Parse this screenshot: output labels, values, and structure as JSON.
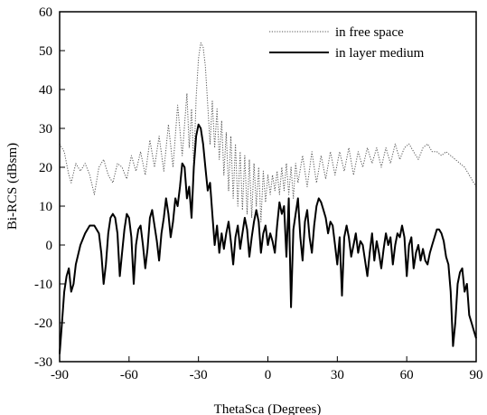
{
  "chart_data": {
    "type": "line",
    "xlabel": "ThetaSca (Degrees)",
    "ylabel": "Bi-RCS (dBsm)",
    "xlim": [
      -90,
      90
    ],
    "ylim": [
      -30,
      60
    ],
    "xticks": [
      -90,
      -60,
      -30,
      0,
      30,
      60,
      90
    ],
    "yticks": [
      -30,
      -20,
      -10,
      0,
      10,
      20,
      30,
      40,
      50,
      60
    ],
    "grid": false,
    "legend_position": "top-right",
    "series": [
      {
        "name": "in free space",
        "style": "dotted",
        "color": "#555555",
        "points": [
          [
            -90,
            26
          ],
          [
            -88,
            24
          ],
          [
            -86,
            18
          ],
          [
            -85,
            16
          ],
          [
            -83,
            21
          ],
          [
            -81,
            19
          ],
          [
            -79,
            21
          ],
          [
            -77,
            18
          ],
          [
            -75,
            13
          ],
          [
            -73,
            20
          ],
          [
            -71,
            22
          ],
          [
            -69,
            18
          ],
          [
            -67,
            16
          ],
          [
            -65,
            21
          ],
          [
            -63,
            20
          ],
          [
            -61,
            17
          ],
          [
            -59,
            23
          ],
          [
            -57,
            19
          ],
          [
            -55,
            24
          ],
          [
            -53,
            18
          ],
          [
            -51,
            27
          ],
          [
            -49,
            20
          ],
          [
            -47,
            28
          ],
          [
            -45,
            19
          ],
          [
            -43,
            31
          ],
          [
            -41,
            20
          ],
          [
            -39,
            36
          ],
          [
            -37,
            23
          ],
          [
            -35,
            39
          ],
          [
            -34,
            25
          ],
          [
            -33,
            35
          ],
          [
            -32,
            20
          ],
          [
            -31,
            38
          ],
          [
            -30,
            48
          ],
          [
            -29,
            52
          ],
          [
            -28,
            51
          ],
          [
            -27,
            46
          ],
          [
            -26,
            36
          ],
          [
            -25,
            26
          ],
          [
            -24,
            37
          ],
          [
            -23,
            25
          ],
          [
            -22,
            35
          ],
          [
            -21,
            22
          ],
          [
            -20,
            32
          ],
          [
            -19,
            18
          ],
          [
            -18,
            29
          ],
          [
            -17,
            14
          ],
          [
            -16,
            28
          ],
          [
            -15,
            12
          ],
          [
            -14,
            26
          ],
          [
            -13,
            10
          ],
          [
            -12,
            24
          ],
          [
            -11,
            9
          ],
          [
            -10,
            23
          ],
          [
            -9,
            8
          ],
          [
            -8,
            22
          ],
          [
            -7,
            7
          ],
          [
            -6,
            21
          ],
          [
            -5,
            10
          ],
          [
            -4,
            20
          ],
          [
            -3,
            6
          ],
          [
            -2,
            19
          ],
          [
            -1,
            11
          ],
          [
            0,
            18
          ],
          [
            1,
            13
          ],
          [
            2,
            18
          ],
          [
            3,
            14
          ],
          [
            4,
            19
          ],
          [
            5,
            13
          ],
          [
            6,
            20
          ],
          [
            7,
            14
          ],
          [
            8,
            21
          ],
          [
            9,
            13
          ],
          [
            10,
            20
          ],
          [
            11,
            12
          ],
          [
            12,
            21
          ],
          [
            13,
            16
          ],
          [
            15,
            23
          ],
          [
            17,
            15
          ],
          [
            19,
            24
          ],
          [
            21,
            16
          ],
          [
            23,
            23
          ],
          [
            25,
            17
          ],
          [
            27,
            24
          ],
          [
            29,
            18
          ],
          [
            31,
            24
          ],
          [
            33,
            19
          ],
          [
            35,
            25
          ],
          [
            37,
            18
          ],
          [
            39,
            24
          ],
          [
            41,
            20
          ],
          [
            43,
            25
          ],
          [
            45,
            21
          ],
          [
            47,
            25
          ],
          [
            49,
            20
          ],
          [
            51,
            25
          ],
          [
            53,
            21
          ],
          [
            55,
            26
          ],
          [
            57,
            22
          ],
          [
            59,
            25
          ],
          [
            61,
            26
          ],
          [
            63,
            24
          ],
          [
            65,
            22
          ],
          [
            67,
            25
          ],
          [
            69,
            26
          ],
          [
            71,
            24
          ],
          [
            73,
            24
          ],
          [
            75,
            23
          ],
          [
            77,
            24
          ],
          [
            79,
            23
          ],
          [
            81,
            22
          ],
          [
            83,
            21
          ],
          [
            85,
            20
          ],
          [
            87,
            18
          ],
          [
            89,
            16
          ],
          [
            90,
            15
          ]
        ]
      },
      {
        "name": "in layer medium",
        "style": "solid",
        "color": "#000000",
        "points": [
          [
            -90,
            -28
          ],
          [
            -89,
            -20
          ],
          [
            -88,
            -12
          ],
          [
            -87,
            -8
          ],
          [
            -86,
            -6
          ],
          [
            -85,
            -12
          ],
          [
            -84,
            -10
          ],
          [
            -83,
            -5
          ],
          [
            -81,
            0
          ],
          [
            -79,
            3
          ],
          [
            -77,
            5
          ],
          [
            -75,
            5
          ],
          [
            -73,
            3
          ],
          [
            -72,
            -2
          ],
          [
            -71,
            -10
          ],
          [
            -70,
            -5
          ],
          [
            -69,
            3
          ],
          [
            -68,
            7
          ],
          [
            -67,
            8
          ],
          [
            -66,
            7
          ],
          [
            -65,
            3
          ],
          [
            -64,
            -8
          ],
          [
            -63,
            -2
          ],
          [
            -62,
            4
          ],
          [
            -61,
            8
          ],
          [
            -60,
            7
          ],
          [
            -59,
            2
          ],
          [
            -58,
            -10
          ],
          [
            -57,
            0
          ],
          [
            -56,
            4
          ],
          [
            -55,
            5
          ],
          [
            -54,
            0
          ],
          [
            -53,
            -6
          ],
          [
            -52,
            -1
          ],
          [
            -51,
            7
          ],
          [
            -50,
            9
          ],
          [
            -49,
            5
          ],
          [
            -48,
            1
          ],
          [
            -47,
            -4
          ],
          [
            -46,
            3
          ],
          [
            -45,
            7
          ],
          [
            -44,
            12
          ],
          [
            -43,
            8
          ],
          [
            -42,
            2
          ],
          [
            -41,
            6
          ],
          [
            -40,
            12
          ],
          [
            -39,
            10
          ],
          [
            -38,
            15
          ],
          [
            -37,
            21
          ],
          [
            -36,
            20
          ],
          [
            -35,
            12
          ],
          [
            -34,
            15
          ],
          [
            -33,
            7
          ],
          [
            -32,
            20
          ],
          [
            -31,
            28
          ],
          [
            -30,
            31
          ],
          [
            -29,
            30
          ],
          [
            -28,
            26
          ],
          [
            -27,
            20
          ],
          [
            -26,
            14
          ],
          [
            -25,
            16
          ],
          [
            -24,
            8
          ],
          [
            -23,
            0
          ],
          [
            -22,
            5
          ],
          [
            -21,
            -2
          ],
          [
            -20,
            3
          ],
          [
            -19,
            -1
          ],
          [
            -18,
            3
          ],
          [
            -17,
            6
          ],
          [
            -16,
            1
          ],
          [
            -15,
            -5
          ],
          [
            -14,
            2
          ],
          [
            -13,
            5
          ],
          [
            -12,
            -1
          ],
          [
            -11,
            3
          ],
          [
            -10,
            7
          ],
          [
            -9,
            4
          ],
          [
            -8,
            -3
          ],
          [
            -7,
            2
          ],
          [
            -6,
            6
          ],
          [
            -5,
            9
          ],
          [
            -4,
            6
          ],
          [
            -3,
            -2
          ],
          [
            -2,
            3
          ],
          [
            -1,
            5
          ],
          [
            0,
            0
          ],
          [
            1,
            3
          ],
          [
            2,
            1
          ],
          [
            3,
            -2
          ],
          [
            4,
            5
          ],
          [
            5,
            11
          ],
          [
            6,
            8
          ],
          [
            7,
            10
          ],
          [
            8,
            -3
          ],
          [
            9,
            12
          ],
          [
            10,
            -16
          ],
          [
            11,
            4
          ],
          [
            12,
            8
          ],
          [
            13,
            12
          ],
          [
            14,
            2
          ],
          [
            15,
            -4
          ],
          [
            16,
            6
          ],
          [
            17,
            9
          ],
          [
            18,
            2
          ],
          [
            19,
            -2
          ],
          [
            20,
            5
          ],
          [
            21,
            10
          ],
          [
            22,
            12
          ],
          [
            23,
            11
          ],
          [
            24,
            9
          ],
          [
            25,
            7
          ],
          [
            26,
            3
          ],
          [
            27,
            6
          ],
          [
            28,
            5
          ],
          [
            29,
            0
          ],
          [
            30,
            -5
          ],
          [
            31,
            2
          ],
          [
            32,
            -13
          ],
          [
            33,
            2
          ],
          [
            34,
            5
          ],
          [
            35,
            2
          ],
          [
            36,
            -3
          ],
          [
            37,
            0
          ],
          [
            38,
            3
          ],
          [
            39,
            -2
          ],
          [
            40,
            1
          ],
          [
            41,
            0
          ],
          [
            43,
            -8
          ],
          [
            44,
            -2
          ],
          [
            45,
            3
          ],
          [
            46,
            -4
          ],
          [
            47,
            1
          ],
          [
            48,
            -2
          ],
          [
            49,
            -6
          ],
          [
            50,
            -1
          ],
          [
            51,
            3
          ],
          [
            52,
            0
          ],
          [
            53,
            2
          ],
          [
            54,
            -5
          ],
          [
            55,
            0
          ],
          [
            56,
            3
          ],
          [
            57,
            2
          ],
          [
            58,
            5
          ],
          [
            59,
            2
          ],
          [
            60,
            -8
          ],
          [
            61,
            0
          ],
          [
            62,
            2
          ],
          [
            63,
            -6
          ],
          [
            64,
            -2
          ],
          [
            65,
            0
          ],
          [
            66,
            -4
          ],
          [
            67,
            -1
          ],
          [
            68,
            -4
          ],
          [
            69,
            -5
          ],
          [
            70,
            -2
          ],
          [
            71,
            0
          ],
          [
            72,
            2
          ],
          [
            73,
            4
          ],
          [
            74,
            4
          ],
          [
            75,
            3
          ],
          [
            76,
            1
          ],
          [
            77,
            -3
          ],
          [
            78,
            -5
          ],
          [
            79,
            -12
          ],
          [
            80,
            -26
          ],
          [
            81,
            -20
          ],
          [
            82,
            -10
          ],
          [
            83,
            -7
          ],
          [
            84,
            -6
          ],
          [
            85,
            -12
          ],
          [
            86,
            -10
          ],
          [
            87,
            -18
          ],
          [
            88,
            -20
          ],
          [
            89,
            -22
          ],
          [
            90,
            -24
          ]
        ]
      }
    ]
  }
}
